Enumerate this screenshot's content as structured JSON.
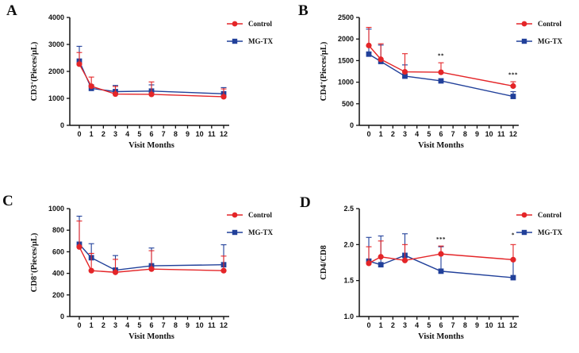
{
  "figure_background": "#ffffff",
  "colors": {
    "control_red": "#E42528",
    "mgtx_blue": "#21409A",
    "axis_black": "#111111"
  },
  "chart_data": [
    {
      "panel": "A",
      "type": "line",
      "row": 1,
      "xlabel": "Visit Months",
      "ylabel": {
        "base": "CD3",
        "sup": "+",
        "rest": "(Pieces/μL)"
      },
      "ylim": [
        0,
        4000
      ],
      "ytick_values": [
        0,
        1000,
        2000,
        3000,
        4000
      ],
      "ytick_labels": [
        "0",
        "1000",
        "2000",
        "3000",
        "4000"
      ],
      "xticks": [
        0,
        1,
        2,
        3,
        4,
        5,
        6,
        7,
        8,
        9,
        10,
        11,
        12
      ],
      "x": [
        0,
        1,
        3,
        6,
        12
      ],
      "legend_position": "top-right",
      "grid": false,
      "series": [
        {
          "name": "Control",
          "marker": "circle",
          "color": "#E42528",
          "values": [
            2270,
            1450,
            1160,
            1150,
            1060
          ],
          "err_up": [
            430,
            340,
            280,
            460,
            290
          ]
        },
        {
          "name": "MG-TX",
          "marker": "square",
          "color": "#21409A",
          "values": [
            2380,
            1370,
            1250,
            1270,
            1170
          ],
          "err_up": [
            550,
            130,
            230,
            230,
            230
          ]
        }
      ],
      "annotations": []
    },
    {
      "panel": "B",
      "type": "line",
      "row": 1,
      "xlabel": "Visit Months",
      "ylabel": {
        "base": "CD4",
        "sup": "+",
        "rest": "(Pieces/μL)"
      },
      "ylim": [
        0,
        2500
      ],
      "ytick_values": [
        0,
        500,
        1000,
        1500,
        2000,
        2500
      ],
      "ytick_labels": [
        "0",
        "500",
        "1000",
        "1500",
        "2000",
        "2500"
      ],
      "xticks": [
        0,
        1,
        2,
        3,
        4,
        5,
        6,
        7,
        8,
        9,
        10,
        11,
        12
      ],
      "x": [
        0,
        1,
        3,
        6,
        12
      ],
      "legend_position": "top-right",
      "grid": false,
      "series": [
        {
          "name": "Control",
          "marker": "circle",
          "color": "#E42528",
          "values": [
            1850,
            1530,
            1240,
            1230,
            910
          ],
          "err_up": [
            420,
            360,
            420,
            220,
            100
          ]
        },
        {
          "name": "MG-TX",
          "marker": "square",
          "color": "#21409A",
          "values": [
            1650,
            1480,
            1140,
            1030,
            670
          ],
          "err_up": [
            580,
            380,
            260,
            0,
            110
          ]
        }
      ],
      "annotations": [
        {
          "text": "**",
          "x": 6,
          "y": 1570
        },
        {
          "text": "***",
          "x": 12,
          "y": 1130
        }
      ]
    },
    {
      "panel": "C",
      "type": "line",
      "row": 2,
      "xlabel": "Visit Months",
      "ylabel": {
        "base": "CD8",
        "sup": "+",
        "rest": "(Pieces/μL)"
      },
      "ylim": [
        0,
        1000
      ],
      "ytick_values": [
        0,
        200,
        400,
        600,
        800,
        1000
      ],
      "ytick_labels": [
        "0",
        "200",
        "400",
        "600",
        "800",
        "1000"
      ],
      "xticks": [
        0,
        1,
        2,
        3,
        4,
        5,
        6,
        7,
        8,
        9,
        10,
        11,
        12
      ],
      "x": [
        0,
        1,
        3,
        6,
        12
      ],
      "legend_position": "top-right",
      "grid": false,
      "series": [
        {
          "name": "Control",
          "marker": "circle",
          "color": "#E42528",
          "values": [
            645,
            425,
            410,
            440,
            425
          ],
          "err_up": [
            240,
            160,
            120,
            170,
            135
          ]
        },
        {
          "name": "MG-TX",
          "marker": "square",
          "color": "#21409A",
          "values": [
            670,
            545,
            430,
            470,
            480
          ],
          "err_up": [
            260,
            130,
            135,
            165,
            185
          ]
        }
      ],
      "annotations": []
    },
    {
      "panel": "D",
      "type": "line",
      "row": 2,
      "xlabel": "Visit Months",
      "ylabel": {
        "base": "CD4/CD8",
        "sup": "",
        "rest": ""
      },
      "ylim": [
        1.0,
        2.5
      ],
      "ytick_values": [
        1.0,
        1.5,
        2.0,
        2.5
      ],
      "ytick_labels": [
        "1.0",
        "1.5",
        "2.0",
        "2.5"
      ],
      "xticks": [
        0,
        1,
        2,
        3,
        4,
        5,
        6,
        7,
        8,
        9,
        10,
        11,
        12
      ],
      "x": [
        0,
        1,
        3,
        6,
        12
      ],
      "legend_position": "top-right",
      "grid": false,
      "series": [
        {
          "name": "Control",
          "marker": "circle",
          "color": "#E42528",
          "values": [
            1.74,
            1.83,
            1.78,
            1.87,
            1.79
          ],
          "err_up": [
            0.23,
            0.22,
            0.22,
            0.11,
            0.21
          ]
        },
        {
          "name": "MG-TX",
          "marker": "square",
          "color": "#21409A",
          "values": [
            1.77,
            1.72,
            1.85,
            1.63,
            1.54
          ],
          "err_up": [
            0.33,
            0.4,
            0.3,
            0.34,
            0.26
          ]
        }
      ],
      "annotations": [
        {
          "text": "***",
          "x": 6,
          "y": 2.05
        },
        {
          "text": "*",
          "x": 12,
          "y": 2.11
        }
      ]
    }
  ]
}
